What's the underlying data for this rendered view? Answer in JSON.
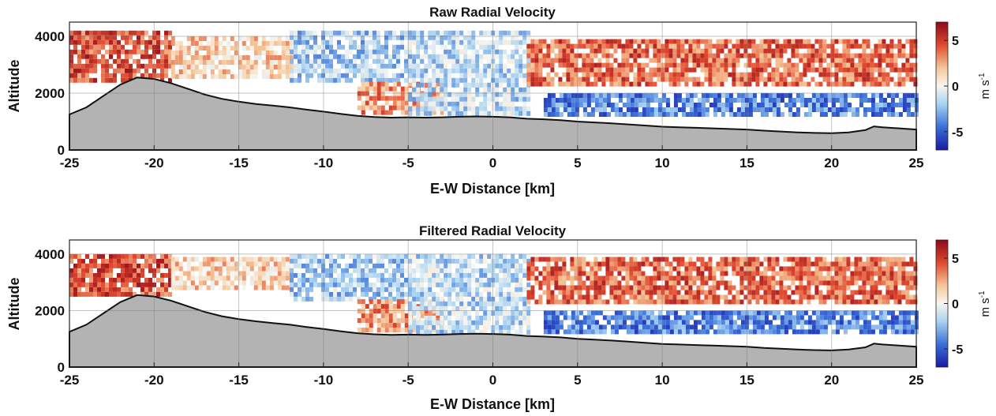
{
  "chart_data": [
    {
      "type": "heatmap",
      "title": "Raw Radial Velocity",
      "xlabel": "E-W Distance [km]",
      "ylabel": "Altitude",
      "xlim": [
        -25,
        25
      ],
      "ylim": [
        0,
        4500
      ],
      "xticks": [
        -25,
        -20,
        -15,
        -10,
        -5,
        0,
        5,
        10,
        15,
        20,
        25
      ],
      "yticks": [
        0,
        2000,
        4000
      ],
      "grid": true,
      "colorbar": {
        "label": "m s-1",
        "label_base": "m s",
        "label_exp": "-1",
        "ticks": [
          -5,
          0,
          5
        ],
        "range": [
          -7,
          7
        ],
        "colormap": "blue-white-red"
      },
      "terrain": {
        "x": [
          -25,
          -24,
          -23,
          -22,
          -21,
          -20,
          -19,
          -18,
          -17,
          -16,
          -15,
          -14,
          -13,
          -12,
          -11,
          -10,
          -9,
          -8,
          -7,
          -6,
          -5,
          -4,
          -3,
          -2,
          -1,
          0,
          1,
          2,
          3,
          4,
          5,
          6,
          7,
          8,
          9,
          10,
          11,
          12,
          13,
          14,
          15,
          16,
          17,
          18,
          19,
          20,
          21,
          22,
          22.5,
          23,
          24,
          25
        ],
        "altitude": [
          1250,
          1500,
          1900,
          2300,
          2550,
          2500,
          2350,
          2150,
          1950,
          1800,
          1700,
          1620,
          1560,
          1500,
          1420,
          1350,
          1270,
          1200,
          1160,
          1140,
          1150,
          1140,
          1150,
          1170,
          1180,
          1170,
          1150,
          1100,
          1080,
          1050,
          1000,
          970,
          940,
          900,
          860,
          820,
          800,
          780,
          760,
          740,
          720,
          680,
          650,
          620,
          600,
          590,
          620,
          700,
          830,
          800,
          760,
          720
        ]
      },
      "wind_regions": [
        {
          "x": [
            -25,
            -19
          ],
          "alt": [
            2400,
            4200
          ],
          "velocity": 4.5
        },
        {
          "x": [
            -19,
            -12
          ],
          "alt": [
            2600,
            4000
          ],
          "velocity": 1.5
        },
        {
          "x": [
            -12,
            -5
          ],
          "alt": [
            2400,
            4200
          ],
          "velocity": -2
        },
        {
          "x": [
            -8,
            -3
          ],
          "alt": [
            1300,
            2400
          ],
          "velocity": 3
        },
        {
          "x": [
            -5,
            2
          ],
          "alt": [
            1200,
            4200
          ],
          "velocity": -1.5
        },
        {
          "x": [
            2,
            25
          ],
          "alt": [
            2300,
            3900
          ],
          "velocity": 4
        },
        {
          "x": [
            3,
            25
          ],
          "alt": [
            1300,
            2000
          ],
          "velocity": -4
        }
      ]
    },
    {
      "type": "heatmap",
      "title": "Filtered Radial Velocity",
      "xlabel": "E-W Distance [km]",
      "ylabel": "Altitude",
      "xlim": [
        -25,
        25
      ],
      "ylim": [
        0,
        4500
      ],
      "xticks": [
        -25,
        -20,
        -15,
        -10,
        -5,
        0,
        5,
        10,
        15,
        20,
        25
      ],
      "yticks": [
        0,
        2000,
        4000
      ],
      "grid": true,
      "colorbar": {
        "label": "m s-1",
        "label_base": "m s",
        "label_exp": "-1",
        "ticks": [
          -5,
          0,
          5
        ],
        "range": [
          -7,
          7
        ],
        "colormap": "blue-white-red"
      },
      "terrain": {
        "x": [
          -25,
          -24,
          -23,
          -22,
          -21,
          -20,
          -19,
          -18,
          -17,
          -16,
          -15,
          -14,
          -13,
          -12,
          -11,
          -10,
          -9,
          -8,
          -7,
          -6,
          -5,
          -4,
          -3,
          -2,
          -1,
          0,
          1,
          2,
          3,
          4,
          5,
          6,
          7,
          8,
          9,
          10,
          11,
          12,
          13,
          14,
          15,
          16,
          17,
          18,
          19,
          20,
          21,
          22,
          22.5,
          23,
          24,
          25
        ],
        "altitude": [
          1250,
          1500,
          1900,
          2300,
          2550,
          2500,
          2350,
          2150,
          1950,
          1800,
          1700,
          1620,
          1560,
          1500,
          1420,
          1350,
          1270,
          1200,
          1160,
          1140,
          1150,
          1140,
          1150,
          1170,
          1180,
          1170,
          1150,
          1100,
          1080,
          1050,
          1000,
          970,
          940,
          900,
          860,
          820,
          800,
          780,
          760,
          740,
          720,
          680,
          650,
          620,
          600,
          590,
          620,
          700,
          830,
          800,
          760,
          720
        ]
      },
      "wind_regions": [
        {
          "x": [
            -25,
            -19
          ],
          "alt": [
            2600,
            4000
          ],
          "velocity": 4.5
        },
        {
          "x": [
            -19,
            -12
          ],
          "alt": [
            2800,
            3900
          ],
          "velocity": 1.5
        },
        {
          "x": [
            -12,
            -5
          ],
          "alt": [
            2400,
            4000
          ],
          "velocity": -2
        },
        {
          "x": [
            -8,
            -3
          ],
          "alt": [
            1300,
            2400
          ],
          "velocity": 3
        },
        {
          "x": [
            -5,
            2
          ],
          "alt": [
            1200,
            4000
          ],
          "velocity": -1.5
        },
        {
          "x": [
            2,
            25
          ],
          "alt": [
            2300,
            3900
          ],
          "velocity": 4
        },
        {
          "x": [
            3,
            25
          ],
          "alt": [
            1300,
            2000
          ],
          "velocity": -4
        }
      ]
    }
  ]
}
